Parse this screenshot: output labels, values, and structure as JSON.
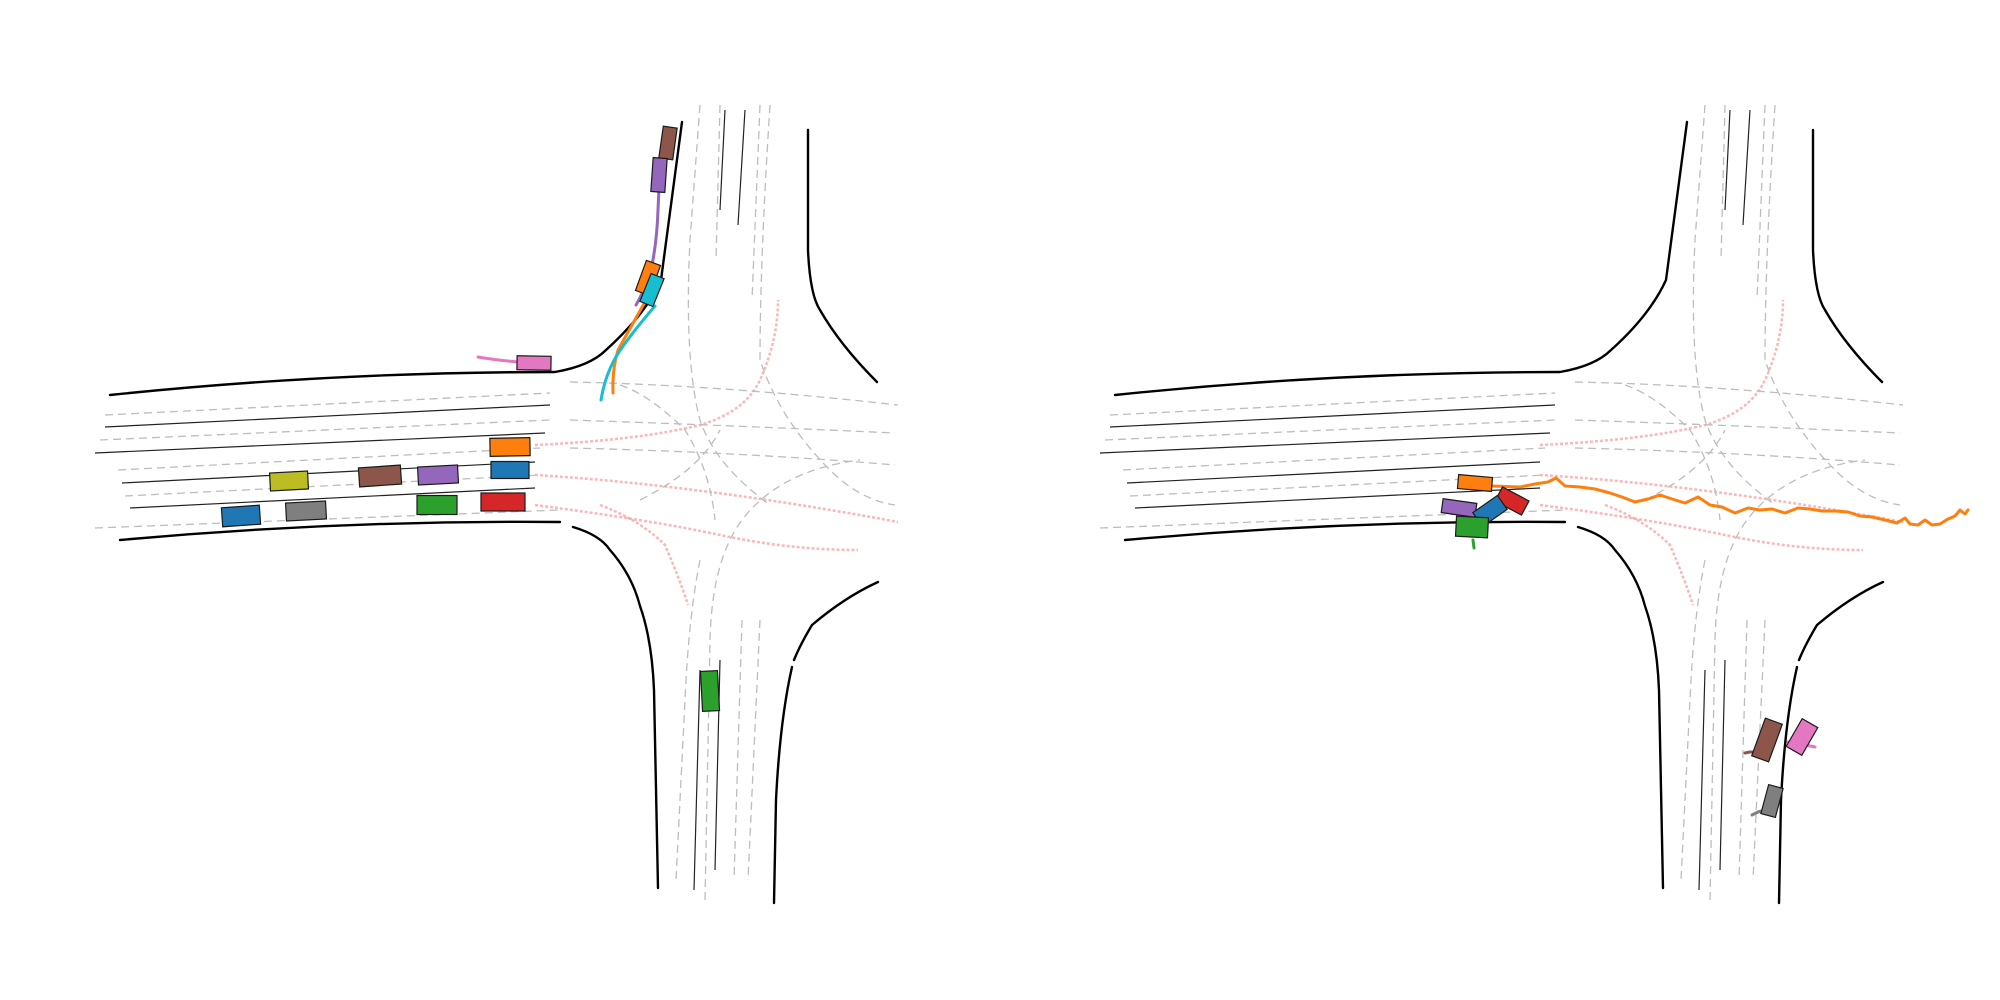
{
  "palette": {
    "blue": "#1f77b4",
    "orange": "#ff7f0e",
    "green": "#2ca02c",
    "red": "#d62728",
    "purple": "#9467bd",
    "brown": "#8c564b",
    "pink": "#e377c2",
    "gray": "#7f7f7f",
    "olive": "#bcbd22",
    "cyan": "#17becf",
    "route": "#f08080",
    "lane_dash": "#bdbdbd",
    "road_edge": "#000000"
  },
  "panels": [
    {
      "id": "left",
      "vehicles": [
        {
          "color": "brown"
        },
        {
          "color": "purple"
        },
        {
          "color": "orange"
        },
        {
          "color": "cyan"
        },
        {
          "color": "pink"
        },
        {
          "color": "orange"
        },
        {
          "color": "blue"
        },
        {
          "color": "purple"
        },
        {
          "color": "brown"
        },
        {
          "color": "olive"
        },
        {
          "color": "green"
        },
        {
          "color": "red"
        },
        {
          "color": "gray"
        },
        {
          "color": "blue"
        },
        {
          "color": "green"
        }
      ]
    },
    {
      "id": "right",
      "vehicles": [
        {
          "color": "orange"
        },
        {
          "color": "red"
        },
        {
          "color": "purple"
        },
        {
          "color": "blue"
        },
        {
          "color": "green"
        },
        {
          "color": "brown"
        },
        {
          "color": "pink"
        },
        {
          "color": "gray"
        }
      ]
    }
  ]
}
